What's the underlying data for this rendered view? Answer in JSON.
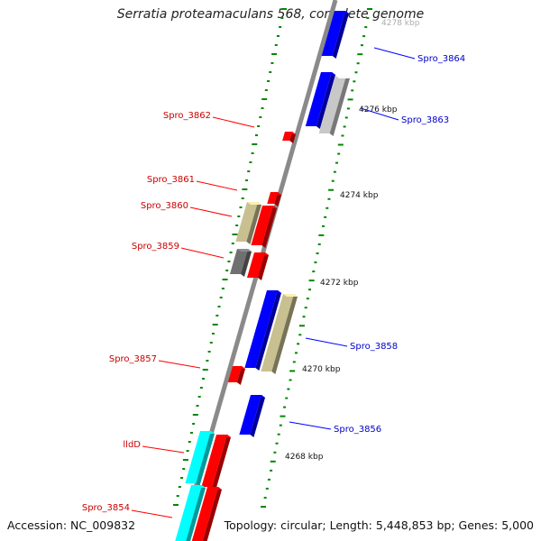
{
  "title": "Serratia proteamaculans 568, complete genome",
  "footer": {
    "accession": "Accession: NC_009832",
    "summary": "Topology: circular; Length: 5,448,853 bp; Genes: 5,000"
  },
  "scale_labels": [
    {
      "text": "4278 kbp",
      "faded": true
    },
    {
      "text": "4276 kbp"
    },
    {
      "text": "4274 kbp"
    },
    {
      "text": "4272 kbp"
    },
    {
      "text": "4270 kbp"
    },
    {
      "text": "4268 kbp"
    }
  ],
  "gene_labels": [
    {
      "text": "Spro_3864",
      "color": "blue"
    },
    {
      "text": "Spro_3863",
      "color": "blue"
    },
    {
      "text": "Spro_3862",
      "color": "red"
    },
    {
      "text": "Spro_3861",
      "color": "red"
    },
    {
      "text": "Spro_3860",
      "color": "red"
    },
    {
      "text": "Spro_3859",
      "color": "red"
    },
    {
      "text": "Spro_3858",
      "color": "blue"
    },
    {
      "text": "Spro_3857",
      "color": "red"
    },
    {
      "text": "Spro_3856",
      "color": "blue"
    },
    {
      "text": "lldD",
      "color": "red"
    },
    {
      "text": "Spro_3854",
      "color": "red"
    }
  ],
  "colors": {
    "forward": "#ff0000",
    "reverse": "#0000ff",
    "gray_feature": "#c8c8c8",
    "dark_feature": "#707070",
    "khaki_feature": "#c8c090",
    "cyan_feature": "#00ffff",
    "tick": "#008800",
    "backbone": "#8a8a8a"
  }
}
